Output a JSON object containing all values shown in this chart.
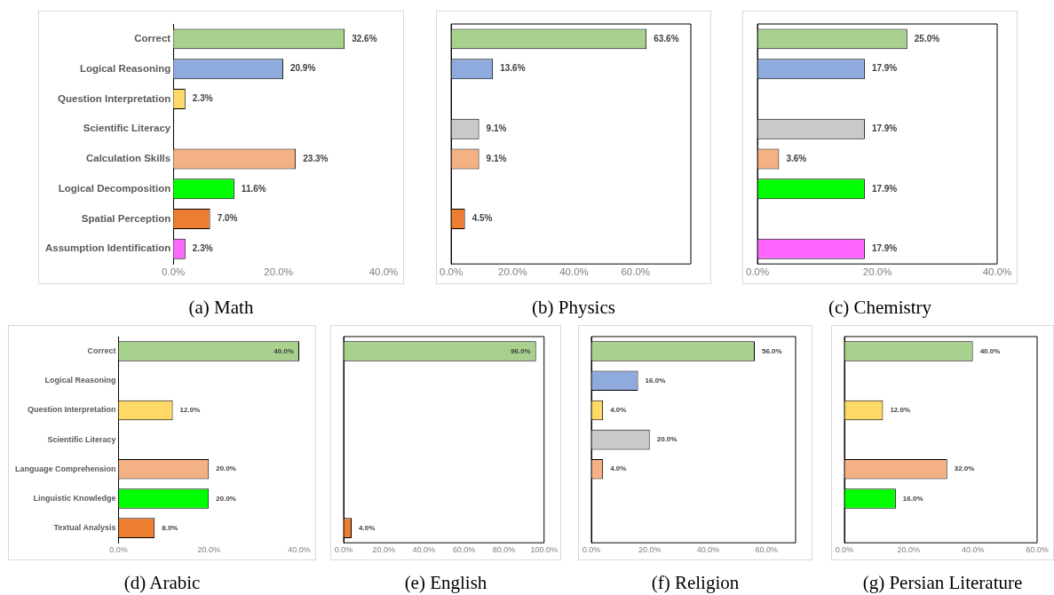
{
  "chart_data": [
    {
      "type": "bar",
      "orientation": "horizontal",
      "title": "(a) Math",
      "categories": [
        "Correct",
        "Logical Reasoning",
        "Question Interpretation",
        "Scientific Literacy",
        "Calculation Skills",
        "Logical Decomposition",
        "Spatial Perception",
        "Assumption Identification"
      ],
      "values": [
        32.6,
        20.9,
        2.3,
        null,
        23.3,
        11.6,
        7.0,
        2.3
      ],
      "value_labels": [
        "32.6%",
        "20.9%",
        "2.3%",
        null,
        "23.3%",
        "11.6%",
        "7.0%",
        "2.3%"
      ],
      "colors": [
        "#a9d18e",
        "#8faadc",
        "#ffd966",
        "#c9c9c9",
        "#f4b183",
        "#00ff00",
        "#ed7d31",
        "#ff66ff"
      ],
      "xlim": [
        0,
        40
      ],
      "xticks": [
        {
          "value": 0,
          "label": "0.0%"
        },
        {
          "value": 20,
          "label": "20.0%"
        },
        {
          "value": 40,
          "label": "40.0%"
        }
      ]
    },
    {
      "type": "bar",
      "orientation": "horizontal",
      "title": "(b) Physics",
      "categories": [
        null,
        null,
        null,
        null,
        null,
        null,
        null,
        null
      ],
      "values": [
        63.6,
        13.6,
        null,
        9.1,
        9.1,
        null,
        4.5,
        null
      ],
      "value_labels": [
        "63.6%",
        "13.6%",
        null,
        "9.1%",
        "9.1%",
        null,
        "4.5%",
        null
      ],
      "colors": [
        "#a9d18e",
        "#8faadc",
        "#ffd966",
        "#c9c9c9",
        "#f4b183",
        "#00ff00",
        "#ed7d31",
        "#ff66ff"
      ],
      "xlim": [
        0,
        78
      ],
      "xticks": [
        {
          "value": 0,
          "label": "0.0%"
        },
        {
          "value": 20,
          "label": "20.0%"
        },
        {
          "value": 40,
          "label": "40.0%"
        },
        {
          "value": 60,
          "label": "60.0%"
        }
      ],
      "tick_labels": "x"
    },
    {
      "type": "bar",
      "orientation": "horizontal",
      "title": "(c) Chemistry",
      "categories": [
        null,
        null,
        null,
        null,
        null,
        null,
        null,
        null
      ],
      "values": [
        25.0,
        17.9,
        null,
        17.9,
        3.6,
        17.9,
        null,
        17.9
      ],
      "value_labels": [
        "25.0%",
        "17.9%",
        null,
        "17.9%",
        "3.6%",
        "17.9%",
        null,
        "17.9%"
      ],
      "colors": [
        "#a9d18e",
        "#8faadc",
        "#ffd966",
        "#c9c9c9",
        "#f4b183",
        "#00ff00",
        "#ed7d31",
        "#ff66ff"
      ],
      "xlim": [
        0,
        40
      ],
      "xticks": [
        {
          "value": 0,
          "label": "0.0%"
        },
        {
          "value": 20,
          "label": "20.0%"
        },
        {
          "value": 40,
          "label": "40.0%"
        }
      ],
      "tick_labels": "x"
    },
    {
      "type": "bar",
      "orientation": "horizontal",
      "title": "(d) Arabic",
      "categories": [
        "Correct",
        "Logical Reasoning",
        "Question Interpretation",
        "Scientific Literacy",
        "Language Comprehension",
        "Linguistic Knowledge",
        "Textual Analysis"
      ],
      "values": [
        40.0,
        null,
        12.0,
        null,
        20.0,
        20.0,
        8.0
      ],
      "value_labels": [
        "40.0%",
        null,
        "12.0%",
        null,
        "20.0%",
        "20.0%",
        "8.0%"
      ],
      "colors": [
        "#a9d18e",
        "#8faadc",
        "#ffd966",
        "#c9c9c9",
        "#f4b183",
        "#00ff00",
        "#ed7d31"
      ],
      "xlim": [
        0,
        40
      ],
      "xticks": [
        {
          "value": 0,
          "label": "0.0%"
        },
        {
          "value": 20,
          "label": "20.0%"
        },
        {
          "value": 40,
          "label": "40.0%"
        }
      ]
    },
    {
      "type": "bar",
      "orientation": "horizontal",
      "title": "(e) English",
      "categories": [
        null,
        null,
        null,
        null,
        null,
        null,
        null
      ],
      "values": [
        96.0,
        null,
        null,
        null,
        null,
        null,
        4.0
      ],
      "value_labels": [
        "96.0%",
        null,
        null,
        null,
        null,
        null,
        "4.0%"
      ],
      "colors": [
        "#a9d18e",
        "#8faadc",
        "#ffd966",
        "#c9c9c9",
        "#f4b183",
        "#00ff00",
        "#ed7d31"
      ],
      "xlim": [
        0,
        100
      ],
      "xticks": [
        {
          "value": 0,
          "label": "0.0%"
        },
        {
          "value": 20,
          "label": "20.0%"
        },
        {
          "value": 40,
          "label": "40.0%"
        },
        {
          "value": 60,
          "label": "60.0%"
        },
        {
          "value": 80,
          "label": "80.0%"
        },
        {
          "value": 100,
          "label": "100.0%"
        }
      ],
      "tick_labels": "x"
    },
    {
      "type": "bar",
      "orientation": "horizontal",
      "title": "(f) Religion",
      "categories": [
        null,
        null,
        null,
        null,
        null,
        null,
        null
      ],
      "values": [
        56.0,
        16.0,
        4.0,
        20.0,
        4.0,
        null,
        null
      ],
      "value_labels": [
        "56.0%",
        "16.0%",
        "4.0%",
        "20.0%",
        "4.0%",
        null,
        null
      ],
      "colors": [
        "#a9d18e",
        "#8faadc",
        "#ffd966",
        "#c9c9c9",
        "#f4b183",
        "#00ff00",
        "#ed7d31"
      ],
      "xlim": [
        0,
        70
      ],
      "xticks": [
        {
          "value": 0,
          "label": "0.0%"
        },
        {
          "value": 20,
          "label": "20.0%"
        },
        {
          "value": 40,
          "label": "40.0%"
        },
        {
          "value": 60,
          "label": "60.0%"
        }
      ],
      "tick_labels": "x"
    },
    {
      "type": "bar",
      "orientation": "horizontal",
      "title": "(g) Persian Literature",
      "categories": [
        null,
        null,
        null,
        null,
        null,
        null,
        null
      ],
      "values": [
        40.0,
        null,
        12.0,
        null,
        32.0,
        16.0,
        null
      ],
      "value_labels": [
        "40.0%",
        null,
        "12.0%",
        null,
        "32.0%",
        "16.0%",
        null
      ],
      "colors": [
        "#a9d18e",
        "#8faadc",
        "#ffd966",
        "#c9c9c9",
        "#f4b183",
        "#00ff00",
        "#ed7d31"
      ],
      "xlim": [
        0,
        60
      ],
      "xticks": [
        {
          "value": 0,
          "label": "0.0%"
        },
        {
          "value": 20,
          "label": "20.0%"
        },
        {
          "value": 40,
          "label": "40.0%"
        },
        {
          "value": 60,
          "label": "60.0%"
        }
      ],
      "tick_labels": "x"
    }
  ]
}
